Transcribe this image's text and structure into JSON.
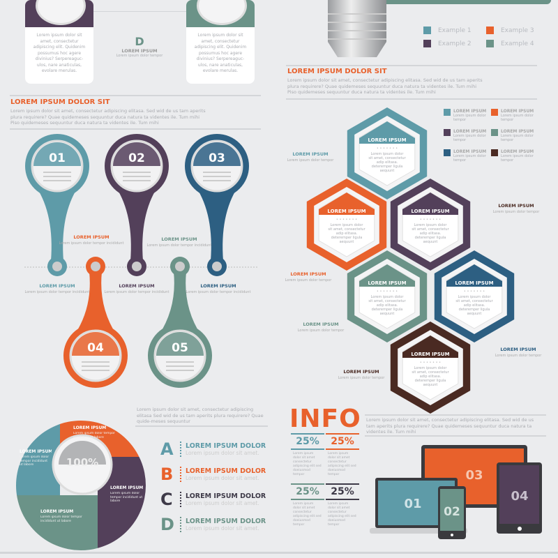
{
  "colors": {
    "teal": "#5e9ba8",
    "orange": "#e8612c",
    "purple": "#53405a",
    "green": "#6b9388",
    "blue": "#2d5f82",
    "brown": "#4a2a22",
    "background": "#ebecee"
  },
  "top_left": {
    "card_text": "Lorem ipsum dolor sit amet, consectetur adipiscing elit. Quidenim possumus hoc agere divinius? Serpereaguc-ulos, nare anaticulas, evolare merulas.",
    "letter": "D",
    "label": "LOREM IPSUM",
    "sub": "Lorem ipsum dolor tempor"
  },
  "section1": {
    "title": "LOREM IPSUM DOLOR SIT",
    "text": "Lorem ipsum dolor sit amet, consectetur adipiscing elitasa. Sed wid de us tam aperits plura requirere? Quae quidemeses sequuntur duca natura ta videntes ile. Tum mihi Piso quidemeses sequuntur duca natura ta videntes ile. Tum mihi"
  },
  "section2": {
    "title": "LOREM IPSUM DOLOR SIT",
    "text": "Lorem ipsum dolor sit amet, consectetur adipiscing elitasa. Sed wid de us tam aperits plura requirere? Quae quidemeses sequuntur duca natura ta videntes ile. Tum mihi Piso quidemeses sequuntur duca natura ta videntes ile. Tum mihi"
  },
  "legend": [
    {
      "label": "Example 1",
      "color": "#5e9ba8"
    },
    {
      "label": "Example 3",
      "color": "#e8612c"
    },
    {
      "label": "Example 2",
      "color": "#53405a"
    },
    {
      "label": "Example 4",
      "color": "#6b9388"
    }
  ],
  "pins": [
    {
      "num": "01",
      "color": "#5e9ba8"
    },
    {
      "num": "02",
      "color": "#53405a"
    },
    {
      "num": "03",
      "color": "#2d5f82"
    },
    {
      "num": "04",
      "color": "#e8612c"
    },
    {
      "num": "05",
      "color": "#6b9388"
    }
  ],
  "pin_label": "LOREM IPSUM",
  "pin_sub": "Lorem ipsum dolor tempor incididunt",
  "hex": {
    "title": "LOREM IPSUM",
    "text": "Lorem ipsum dolor sit amet, consectetur adip elitasa. deteremper ligula aequunt"
  },
  "hex_legend": [
    {
      "label": "LOREM IPSUM",
      "color": "#5e9ba8"
    },
    {
      "label": "LOREM IPSUM",
      "color": "#e8612c"
    },
    {
      "label": "LOREM IPSUM",
      "color": "#53405a"
    },
    {
      "label": "LOREM IPSUM",
      "color": "#6b9388"
    },
    {
      "label": "LOREM IPSUM",
      "color": "#2d5f82"
    },
    {
      "label": "LOREM IPSUM",
      "color": "#4a2a22"
    }
  ],
  "hex_legend_sub": "Lorem ipsum dolor tempor",
  "pie": {
    "center": "100%",
    "segment_label": "LOREM IPSUM",
    "segment_sub": "Lorem ipsum dolor tempor incididunt ut labore",
    "intro": "Lorem ipsum dolor sit amet, consectetur adipiscing elitasa Sed wid de us tam aperits plura requirere? Quae quide-meses sequuntur"
  },
  "abcd": [
    {
      "letter": "A",
      "title": "LOREM IPSUM DOLOR",
      "sub": "Lorem ipsum dolor sit amet.",
      "color": "#5e9ba8"
    },
    {
      "letter": "B",
      "title": "LOREM IPSUM DOLOR",
      "sub": "Lorem ipsum dolor sit amet.",
      "color": "#e8612c"
    },
    {
      "letter": "C",
      "title": "LOREM IPSUM DOLOR",
      "sub": "Lorem ipsum dolor sit amet.",
      "color": "#3e3a48"
    },
    {
      "letter": "D",
      "title": "LOREM IPSUM DOLOR",
      "sub": "Lorem ipsum dolor sit amet.",
      "color": "#6b9388"
    }
  ],
  "info": {
    "title": "INFO",
    "text": "Lorem ipsum dolor sit amet, consectetur adipiscing elitasa. Sed wid de us tam aperits plura requirere? Quae quidemeses sequuntur duca natura ta videntes ile. Tum mihi",
    "stats": [
      {
        "value": "25%",
        "color": "#5e9ba8"
      },
      {
        "value": "25%",
        "color": "#e8612c"
      },
      {
        "value": "25%",
        "color": "#6b9388"
      },
      {
        "value": "25%",
        "color": "#3e3a48"
      }
    ],
    "stat_text": "Lorem ipsum dolor sit amet consectetur adipiscing elit sed doeiusmod tempor"
  },
  "devices": [
    {
      "num": "01",
      "color": "#5e9ba8"
    },
    {
      "num": "02",
      "color": "#6b9388"
    },
    {
      "num": "03",
      "color": "#e8612c"
    },
    {
      "num": "04",
      "color": "#53405a"
    }
  ]
}
